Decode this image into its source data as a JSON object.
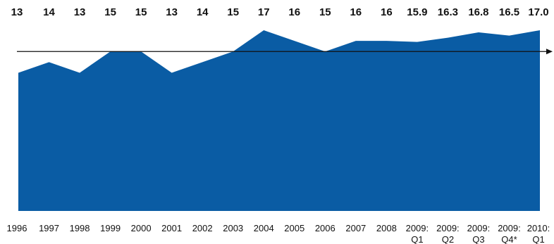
{
  "chart_data": {
    "type": "area",
    "categories": [
      [
        "1996"
      ],
      [
        "1997"
      ],
      [
        "1998"
      ],
      [
        "1999"
      ],
      [
        "2000"
      ],
      [
        "2001"
      ],
      [
        "2002"
      ],
      [
        "2003"
      ],
      [
        "2004"
      ],
      [
        "2005"
      ],
      [
        "2006"
      ],
      [
        "2007"
      ],
      [
        "2008"
      ],
      [
        "2009:",
        "Q1"
      ],
      [
        "2009:",
        "Q2"
      ],
      [
        "2009:",
        "Q3"
      ],
      [
        "2009:",
        "Q4*"
      ],
      [
        "2010:",
        "Q1"
      ]
    ],
    "values": [
      13,
      14,
      13,
      15,
      15,
      13,
      14,
      15,
      17,
      16,
      15,
      16,
      16,
      15.9,
      16.3,
      16.8,
      16.5,
      17.0
    ],
    "value_labels": [
      "13",
      "14",
      "13",
      "15",
      "15",
      "13",
      "14",
      "15",
      "17",
      "16",
      "15",
      "16",
      "16",
      "15.9",
      "16.3",
      "16.8",
      "16.5",
      "17.0"
    ],
    "reference_line": 15,
    "ylim": [
      0,
      17.2
    ],
    "grid": false,
    "legend": "none",
    "colors": {
      "area": "#0a5ca4",
      "reference_line": "#111111",
      "text": "#111111"
    }
  }
}
